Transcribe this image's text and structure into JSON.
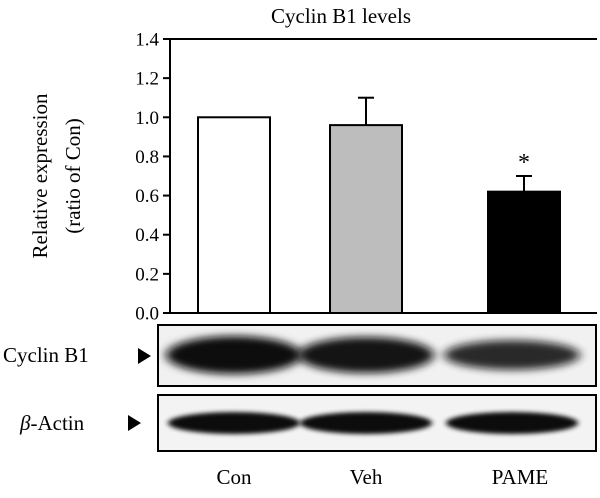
{
  "chart_data": {
    "type": "bar",
    "title": "Cyclin B1 levels",
    "ylabel_line1": "Relative expression",
    "ylabel_line2": "(ratio of Con)",
    "xlabel": "",
    "categories": [
      "Con",
      "Veh",
      "PAME"
    ],
    "values": [
      1.0,
      0.96,
      0.62
    ],
    "errors": [
      0.0,
      0.14,
      0.08
    ],
    "bar_colors": [
      "#ffffff",
      "#bdbdbd",
      "#000000"
    ],
    "ylim": [
      0,
      1.4
    ],
    "yticks": [
      "0.0",
      "0.2",
      "0.4",
      "0.6",
      "0.8",
      "1.0",
      "1.2",
      "1.4"
    ],
    "significance": [
      "",
      "",
      "*"
    ],
    "grid": false,
    "legend": "none"
  },
  "blots": {
    "cyclin_label": "Cyclin B1",
    "actin_label_greek": "β",
    "actin_label_rest": "-Actin",
    "cyclin_intensity": [
      1.0,
      0.93,
      0.72
    ],
    "actin_intensity": [
      1.0,
      1.0,
      1.0
    ]
  }
}
